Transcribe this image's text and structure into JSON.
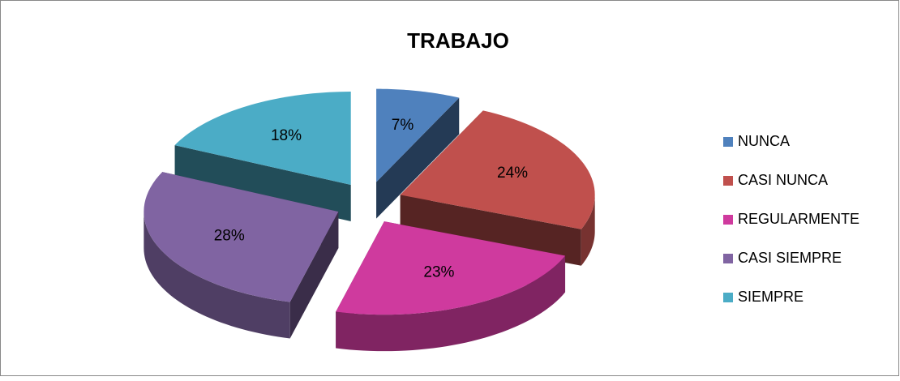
{
  "chart_data": {
    "type": "pie",
    "title": "TRABAJO",
    "categories": [
      "NUNCA",
      "CASI NUNCA",
      "REGULARMENTE",
      "CASI SIEMPRE",
      "SIEMPRE"
    ],
    "values": [
      7,
      24,
      23,
      28,
      18
    ],
    "value_labels": [
      "7%",
      "24%",
      "23%",
      "28%",
      "18%"
    ],
    "colors": [
      "#4f81bd",
      "#c0504d",
      "#cf3a9e",
      "#8064a2",
      "#4bacc6"
    ],
    "legend": "right"
  }
}
